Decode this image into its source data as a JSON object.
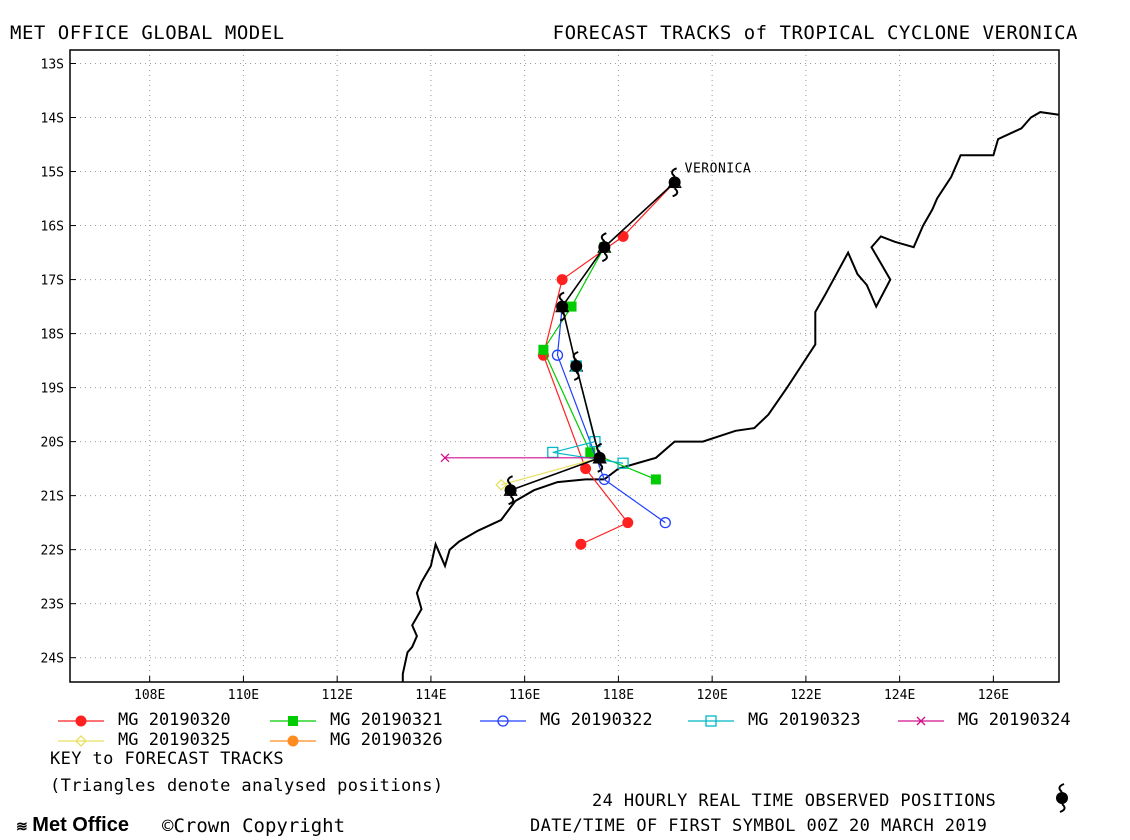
{
  "header": {
    "left_title": "MET OFFICE GLOBAL MODEL",
    "right_title": "FORECAST TRACKS of TROPICAL CYCLONE VERONICA"
  },
  "footer": {
    "key_title": "KEY to FORECAST TRACKS",
    "key_note": "(Triangles denote analysed positions)",
    "observed_label": "24 HOURLY REAL TIME OBSERVED POSITIONS",
    "first_symbol_label": "DATE/TIME OF FIRST SYMBOL 00Z 20 MARCH 2019",
    "logo_text": "Met Office",
    "copyright": "©Crown Copyright"
  },
  "chart_data": {
    "type": "line",
    "xlim": [
      106.3,
      127.4
    ],
    "ylim": [
      -24.45,
      -12.75
    ],
    "x_ticks": [
      108,
      110,
      112,
      114,
      116,
      118,
      120,
      122,
      124,
      126
    ],
    "x_tick_labels": [
      "108E",
      "110E",
      "112E",
      "114E",
      "116E",
      "118E",
      "120E",
      "122E",
      "124E",
      "126E"
    ],
    "y_ticks": [
      -13,
      -14,
      -15,
      -16,
      -17,
      -18,
      -19,
      -20,
      -21,
      -22,
      -23,
      -24
    ],
    "y_tick_labels": [
      "13S",
      "14S",
      "15S",
      "16S",
      "17S",
      "18S",
      "19S",
      "20S",
      "21S",
      "22S",
      "23S",
      "24S"
    ],
    "grid": true,
    "storm_label": "VERONICA",
    "coastline": [
      [
        113.4,
        -24.45
      ],
      [
        113.4,
        -24.3
      ],
      [
        113.5,
        -23.9
      ],
      [
        113.6,
        -23.8
      ],
      [
        113.7,
        -23.6
      ],
      [
        113.6,
        -23.4
      ],
      [
        113.8,
        -23.1
      ],
      [
        113.7,
        -22.8
      ],
      [
        113.8,
        -22.6
      ],
      [
        114.0,
        -22.3
      ],
      [
        114.1,
        -21.9
      ],
      [
        114.3,
        -22.3
      ],
      [
        114.4,
        -22.0
      ],
      [
        114.6,
        -21.85
      ],
      [
        115.0,
        -21.65
      ],
      [
        115.5,
        -21.45
      ],
      [
        115.8,
        -21.1
      ],
      [
        116.2,
        -20.9
      ],
      [
        116.7,
        -20.75
      ],
      [
        117.3,
        -20.7
      ],
      [
        117.7,
        -20.7
      ],
      [
        118.0,
        -20.5
      ],
      [
        118.8,
        -20.3
      ],
      [
        119.2,
        -20.0
      ],
      [
        119.8,
        -20.0
      ],
      [
        120.5,
        -19.8
      ],
      [
        120.9,
        -19.75
      ],
      [
        121.2,
        -19.5
      ],
      [
        121.6,
        -19.0
      ],
      [
        121.9,
        -18.6
      ],
      [
        122.2,
        -18.2
      ],
      [
        122.2,
        -17.6
      ],
      [
        122.4,
        -17.3
      ],
      [
        122.9,
        -16.5
      ],
      [
        123.1,
        -16.9
      ],
      [
        123.3,
        -17.1
      ],
      [
        123.5,
        -17.5
      ],
      [
        123.8,
        -17.0
      ],
      [
        123.6,
        -16.7
      ],
      [
        123.4,
        -16.4
      ],
      [
        123.6,
        -16.2
      ],
      [
        123.9,
        -16.3
      ],
      [
        124.3,
        -16.4
      ],
      [
        124.5,
        -16.0
      ],
      [
        124.7,
        -15.7
      ],
      [
        124.8,
        -15.5
      ],
      [
        125.1,
        -15.1
      ],
      [
        125.3,
        -14.7
      ],
      [
        126.0,
        -14.7
      ],
      [
        126.1,
        -14.4
      ],
      [
        126.6,
        -14.2
      ],
      [
        126.8,
        -14.0
      ],
      [
        127.0,
        -13.9
      ],
      [
        127.4,
        -13.95
      ]
    ],
    "observed_track": [
      [
        119.2,
        -15.2
      ],
      [
        117.7,
        -16.4
      ],
      [
        116.8,
        -17.5
      ],
      [
        117.1,
        -18.6
      ],
      [
        117.6,
        -20.3
      ],
      [
        115.7,
        -20.9
      ]
    ],
    "series": [
      {
        "name": "MG 20190320",
        "color": "#ff2020",
        "marker": "filled-circle",
        "points": [
          [
            119.2,
            -15.2
          ],
          [
            118.1,
            -16.2
          ],
          [
            116.8,
            -17.0
          ],
          [
            116.4,
            -18.4
          ],
          [
            117.3,
            -20.5
          ],
          [
            118.2,
            -21.5
          ],
          [
            117.2,
            -21.9
          ]
        ]
      },
      {
        "name": "MG 20190321",
        "color": "#00cc00",
        "marker": "filled-square",
        "points": [
          [
            117.7,
            -16.4
          ],
          [
            117.0,
            -17.5
          ],
          [
            116.4,
            -18.3
          ],
          [
            117.4,
            -20.2
          ],
          [
            118.8,
            -20.7
          ]
        ]
      },
      {
        "name": "MG 20190322",
        "color": "#2040ff",
        "marker": "open-circle",
        "points": [
          [
            116.8,
            -17.5
          ],
          [
            116.7,
            -18.4
          ],
          [
            117.7,
            -20.7
          ],
          [
            119.0,
            -21.5
          ]
        ]
      },
      {
        "name": "MG 20190323",
        "color": "#00b8c8",
        "marker": "open-square",
        "points": [
          [
            117.1,
            -18.6
          ],
          [
            117.5,
            -20.0
          ],
          [
            116.6,
            -20.2
          ],
          [
            118.1,
            -20.4
          ]
        ]
      },
      {
        "name": "MG 20190324",
        "color": "#d0108c",
        "marker": "x",
        "points": [
          [
            117.6,
            -20.3
          ],
          [
            114.3,
            -20.3
          ]
        ]
      },
      {
        "name": "MG 20190325",
        "color": "#e8e060",
        "marker": "open-diamond",
        "points": [
          [
            117.6,
            -20.3
          ],
          [
            115.5,
            -20.8
          ]
        ]
      },
      {
        "name": "MG 20190326",
        "color": "#ff8c20",
        "marker": "filled-circle",
        "points": [
          [
            115.7,
            -20.9
          ]
        ]
      }
    ]
  }
}
